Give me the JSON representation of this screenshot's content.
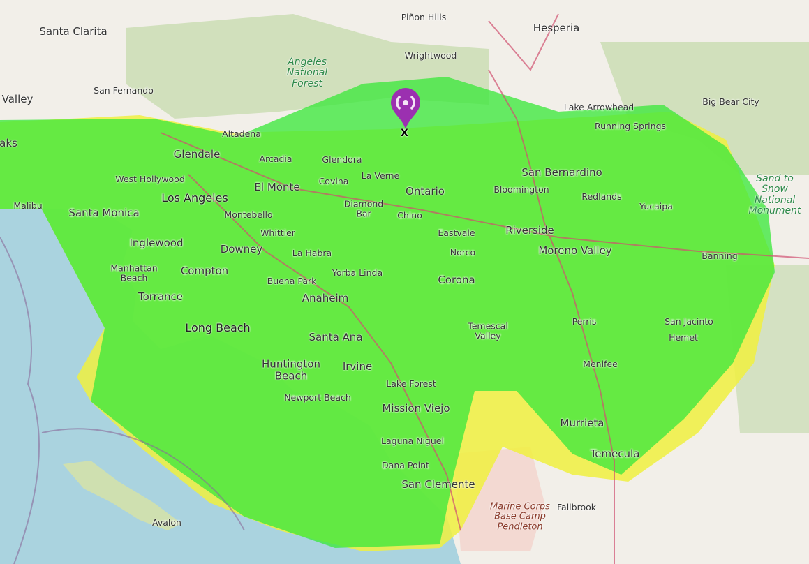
{
  "map": {
    "colors": {
      "land": "#f2efe9",
      "water": "#aad3df",
      "coverage_strong": "#3ee83e",
      "coverage_weak": "#f0f040",
      "park": "#c8dcb0",
      "military": "#f3d9d2"
    },
    "marker": {
      "icon": "radio-tower-icon",
      "color": "#9b30b0",
      "label": "X"
    },
    "places": [
      "Santa Clarita",
      "Piñon Hills",
      "Hesperia",
      "Wrightwood",
      "Angeles National Forest",
      "San Fernando",
      "Valley",
      "Lake Arrowhead",
      "Big Bear City",
      "Altadena",
      "Running Springs",
      "aks",
      "Glendale",
      "Arcadia",
      "Glendora",
      "West Hollywood",
      "La Verne",
      "San Bernardino",
      "Los Angeles",
      "El Monte",
      "Covina",
      "Ontario",
      "Bloomington",
      "Sand to Snow National Monument",
      "Malibu",
      "Diamond Bar",
      "Redlands",
      "Santa Monica",
      "Montebello",
      "Chino",
      "Yucaipa",
      "Whittier",
      "Eastvale",
      "Riverside",
      "Inglewood",
      "Downey",
      "La Habra",
      "Norco",
      "Moreno Valley",
      "Banning",
      "Manhattan Beach",
      "Compton",
      "Yorba Linda",
      "Buena Park",
      "Corona",
      "Torrance",
      "Anaheim",
      "Temescal Valley",
      "Perris",
      "San Jacinto",
      "Hemet",
      "Long Beach",
      "Santa Ana",
      "Huntington Beach",
      "Irvine",
      "Menifee",
      "Lake Forest",
      "Newport Beach",
      "Mission Viejo",
      "Murrieta",
      "Laguna Niguel",
      "Temecula",
      "Dana Point",
      "San Clemente",
      "Marine Corps Base Camp Pendleton",
      "Fallbrook",
      "Avalon"
    ]
  }
}
